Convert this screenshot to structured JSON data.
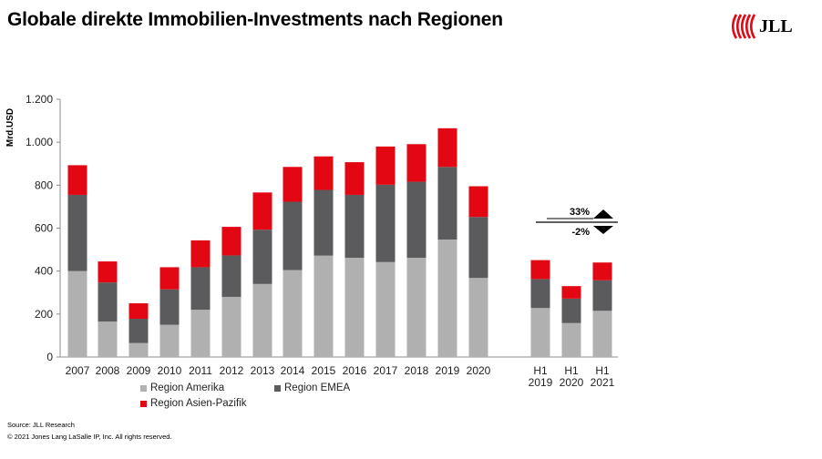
{
  "title": "Globale direkte Immobilien-Investments nach Regionen",
  "logo": {
    "text": "JLL",
    "color": "#e30613"
  },
  "source": "Source: JLL Research",
  "copyright": "© 2021 Jones Lang LaSalle IP, Inc. All rights reserved.",
  "chart_data": {
    "type": "bar",
    "stacked": true,
    "ylabel": "Mrd.USD",
    "ylim": [
      0,
      1200
    ],
    "yticks": [
      0,
      200,
      400,
      600,
      800,
      1000,
      1200
    ],
    "ytick_labels": [
      "0",
      "200",
      "400",
      "600",
      "800",
      "1.000",
      "1.200"
    ],
    "grid": false,
    "legend_position": "bottom",
    "categories": [
      "2007",
      "2008",
      "2009",
      "2010",
      "2011",
      "2012",
      "2013",
      "2014",
      "2015",
      "2016",
      "2017",
      "2018",
      "2019",
      "2020",
      "H1 2019",
      "H1 2020",
      "H1 2021"
    ],
    "category_labels": [
      [
        "2007"
      ],
      [
        "2008"
      ],
      [
        "2009"
      ],
      [
        "2010"
      ],
      [
        "2011"
      ],
      [
        "2012"
      ],
      [
        "2013"
      ],
      [
        "2014"
      ],
      [
        "2015"
      ],
      [
        "2016"
      ],
      [
        "2017"
      ],
      [
        "2018"
      ],
      [
        "2019"
      ],
      [
        "2020"
      ],
      [
        "H1",
        "2019"
      ],
      [
        "H1",
        "2020"
      ],
      [
        "H1",
        "2021"
      ]
    ],
    "series": [
      {
        "name": "Region Amerika",
        "color": "#b0b0b0",
        "values": [
          400,
          165,
          65,
          150,
          220,
          280,
          340,
          405,
          472,
          462,
          442,
          462,
          547,
          368,
          228,
          158,
          215
        ]
      },
      {
        "name": "Region EMEA",
        "color": "#5b5b5d",
        "values": [
          355,
          182,
          113,
          165,
          198,
          193,
          253,
          318,
          306,
          293,
          360,
          354,
          338,
          284,
          135,
          114,
          142
        ]
      },
      {
        "name": "Region Asien-Pazifik",
        "color": "#e30613",
        "values": [
          138,
          98,
          72,
          103,
          125,
          133,
          173,
          162,
          156,
          152,
          178,
          175,
          180,
          143,
          88,
          58,
          83
        ]
      }
    ],
    "annotations": [
      {
        "text": "33%",
        "direction": "up"
      },
      {
        "text": "-2%",
        "direction": "down"
      }
    ]
  }
}
